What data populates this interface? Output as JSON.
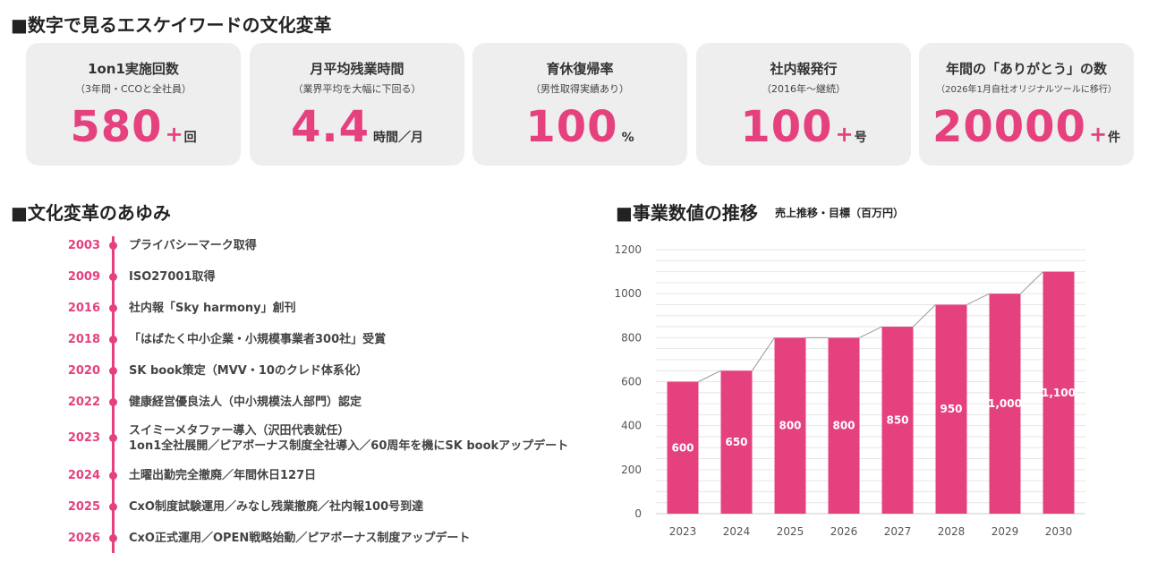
{
  "section_titles": {
    "kpi": "■数字で見るエスケイワードの文化変革",
    "history": "■文化変革のあゆみ",
    "chart": "■事業数値の推移",
    "chart_sub": "売上推移・目標（百万円）"
  },
  "kpi_cards": [
    {
      "title": "1on1実施回数",
      "sub": "（3年間・CCOと全社員）",
      "value": "580",
      "plus": "+",
      "unit": "回"
    },
    {
      "title": "月平均残業時間",
      "sub": "（業界平均を大幅に下回る）",
      "value": "4.4",
      "plus": "",
      "unit": "時間／月"
    },
    {
      "title": "育休復帰率",
      "sub": "（男性取得実績あり）",
      "value": "100",
      "plus": "",
      "unit": "%"
    },
    {
      "title": "社内報発行",
      "sub": "（2016年～継続）",
      "value": "100",
      "plus": "+",
      "unit": "号"
    },
    {
      "title": "年間の「ありがとう」の数",
      "sub": "（2026年1月自社オリジナルツールに移行）",
      "value": "20000",
      "plus": "+",
      "unit": "件"
    }
  ],
  "timeline": [
    {
      "year": "2003",
      "text": "プライバシーマーク取得",
      "text2": ""
    },
    {
      "year": "2009",
      "text": "ISO27001取得",
      "text2": ""
    },
    {
      "year": "2016",
      "text": "社内報「Sky harmony」創刊",
      "text2": ""
    },
    {
      "year": "2018",
      "text": "「はばたく中小企業・小規模事業者300社」受賞",
      "text2": ""
    },
    {
      "year": "2020",
      "text": "SK book策定（MVV・10のクレド体系化）",
      "text2": ""
    },
    {
      "year": "2022",
      "text": "健康経営優良法人（中小規模法人部門）認定",
      "text2": ""
    },
    {
      "year": "2023",
      "text": "スイミーメタファー導入（沢田代表就任）",
      "text2": "1on1全社展開／ピアボーナス制度全社導入／60周年を機にSK bookアップデート"
    },
    {
      "year": "2024",
      "text": "土曜出勤完全撤廃／年間休日127日",
      "text2": ""
    },
    {
      "year": "2025",
      "text": "CxO制度試験運用／みなし残業撤廃／社内報100号到達",
      "text2": ""
    },
    {
      "year": "2026",
      "text": "CxO正式運用／OPEN戦略始動／ピアボーナス制度アップデート",
      "text2": ""
    }
  ],
  "chart_data": {
    "type": "bar",
    "categories": [
      "2023",
      "2024",
      "2025",
      "2026",
      "2027",
      "2028",
      "2029",
      "2030"
    ],
    "values": [
      600,
      650,
      800,
      800,
      850,
      950,
      1000,
      1100
    ],
    "data_labels": [
      "600",
      "650",
      "800",
      "800",
      "850",
      "950",
      "1,000",
      "1,100"
    ],
    "yticks": [
      0,
      200,
      400,
      600,
      800,
      1000,
      1200
    ],
    "ylim": [
      0,
      1200
    ],
    "title": "",
    "xlabel": "",
    "ylabel": "",
    "grid": true,
    "connector_lines": true,
    "bar_color": "#e5417f"
  },
  "colors": {
    "accent": "#e5417f",
    "card_bg": "#eeeeee"
  }
}
